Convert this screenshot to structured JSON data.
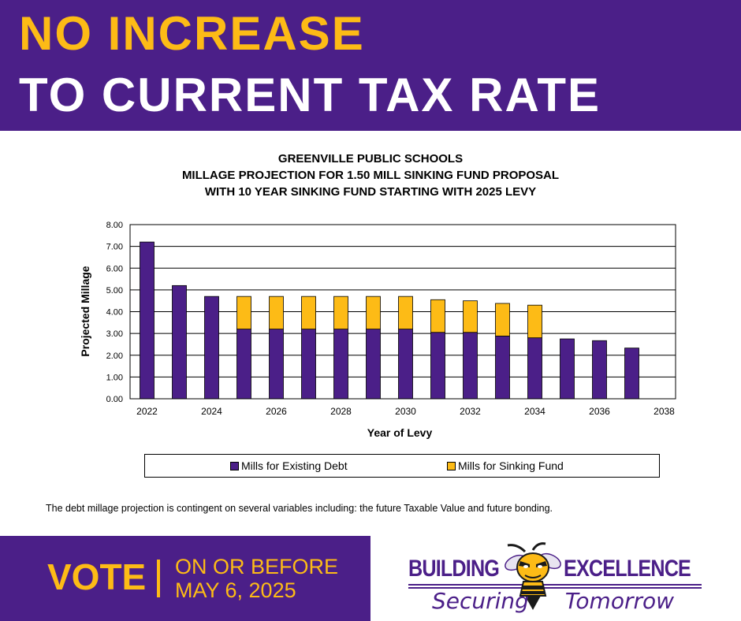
{
  "headline": {
    "line1": "NO INCREASE",
    "line2": "TO CURRENT TAX RATE"
  },
  "colors": {
    "purple": "#4b1f88",
    "gold": "#fdbb16"
  },
  "chart_data": {
    "type": "bar",
    "stacked": true,
    "title_lines": [
      "GREENVILLE PUBLIC SCHOOLS",
      "MILLAGE PROJECTION FOR 1.50 MILL SINKING FUND PROPOSAL",
      "WITH 10 YEAR SINKING FUND STARTING WITH 2025 LEVY"
    ],
    "categories": [
      2022,
      2023,
      2024,
      2025,
      2026,
      2027,
      2028,
      2029,
      2030,
      2031,
      2032,
      2033,
      2034,
      2035,
      2036,
      2037,
      2038
    ],
    "series": [
      {
        "name": "Mills for Existing Debt",
        "color": "#4b1f88",
        "values": [
          7.2,
          5.2,
          4.7,
          3.2,
          3.2,
          3.2,
          3.2,
          3.2,
          3.2,
          3.05,
          3.05,
          2.88,
          2.8,
          2.75,
          2.67,
          2.33,
          0
        ]
      },
      {
        "name": "Mills for Sinking Fund",
        "color": "#fdbb16",
        "values": [
          0,
          0,
          0,
          1.5,
          1.5,
          1.5,
          1.5,
          1.5,
          1.5,
          1.5,
          1.45,
          1.5,
          1.5,
          0,
          0,
          0,
          0
        ]
      }
    ],
    "xlabel": "Year of Levy",
    "ylabel": "Projected Millage",
    "ylim": [
      0,
      8
    ],
    "yticks": [
      "0.00",
      "1.00",
      "2.00",
      "3.00",
      "4.00",
      "5.00",
      "6.00",
      "7.00",
      "8.00"
    ],
    "xticks": [
      "2022",
      "2024",
      "2026",
      "2028",
      "2030",
      "2032",
      "2034",
      "2036",
      "2038"
    ],
    "grid": true,
    "legend_position": "bottom"
  },
  "footnote": "The debt millage projection is contingent on several variables including: the future Taxable Value and future bonding.",
  "vote": {
    "label": "VOTE",
    "line1": "ON OR BEFORE",
    "line2": "MAY 6, 2025"
  },
  "logo": {
    "word1": "BUILDING",
    "word2": "EXCELLENCE",
    "tagline_a": "Securing",
    "tagline_b": "Tomorrow"
  }
}
